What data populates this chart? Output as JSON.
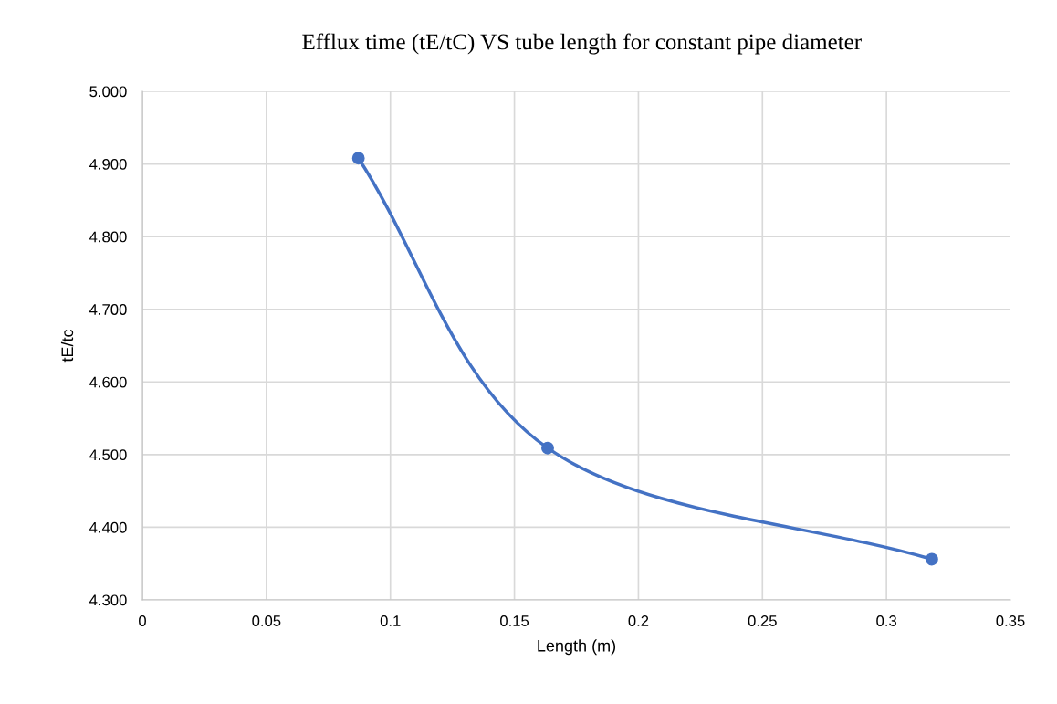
{
  "chart_data": {
    "type": "line",
    "title": "Efflux time (tE/tC) VS tube length for constant pipe diameter",
    "xlabel": "Length (m)",
    "ylabel": "tE/tc",
    "series": [
      {
        "color": "#4472c4",
        "x": [
          0.0871,
          0.1634,
          0.3183
        ],
        "values": [
          4.908,
          4.509,
          4.356
        ]
      }
    ],
    "xlim": [
      0,
      0.35
    ],
    "xticks": [
      0,
      0.05,
      0.1,
      0.15,
      0.2,
      0.25,
      0.3,
      0.35
    ],
    "ylim": [
      4.3,
      5.0
    ],
    "yticks": [
      {
        "value": 4.3,
        "label": "4.300"
      },
      {
        "value": 4.4,
        "label": "4.400"
      },
      {
        "value": 4.5,
        "label": "4.500"
      },
      {
        "value": 4.6,
        "label": "4.600"
      },
      {
        "value": 4.7,
        "label": "4.700"
      },
      {
        "value": 4.8,
        "label": "4.800"
      },
      {
        "value": 4.9,
        "label": "4.900"
      },
      {
        "value": 5.0,
        "label": "5.000"
      }
    ],
    "grid": true,
    "marker": "circle",
    "line_style": "solid"
  }
}
